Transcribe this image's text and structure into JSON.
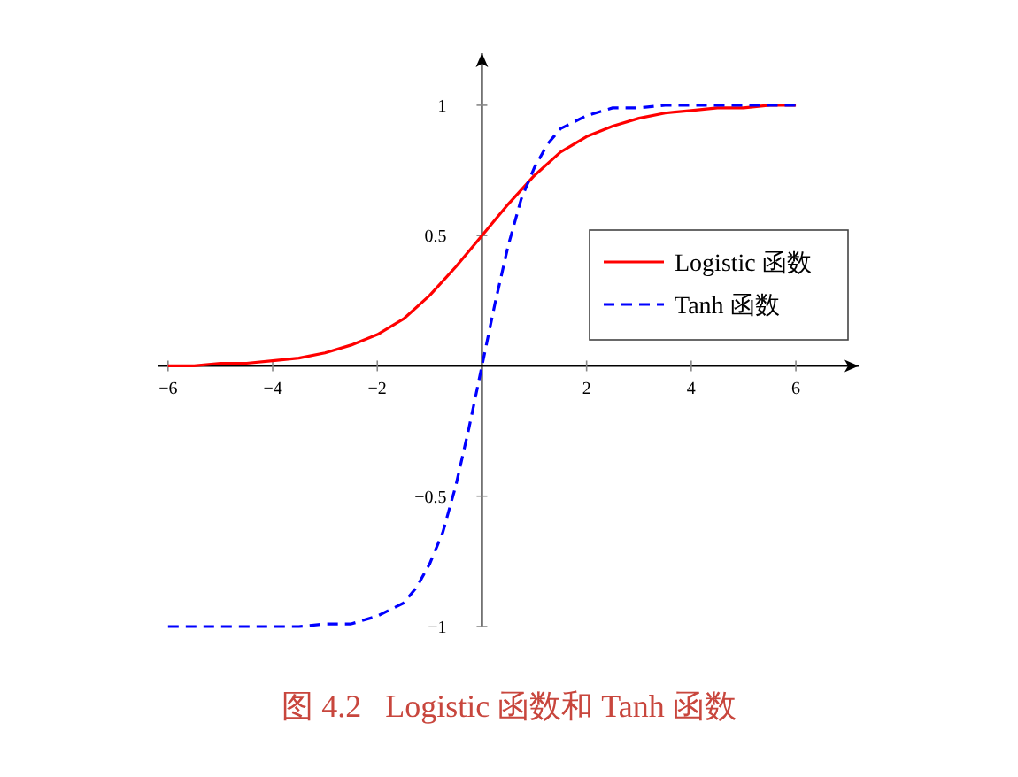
{
  "chart_data": {
    "type": "line",
    "annotations": [
      "图 4.2   Logistic 函数和 Tanh 函数"
    ],
    "xlim": [
      -6.2,
      7.2
    ],
    "ylim": [
      -1,
      1.2
    ],
    "xticks": [
      {
        "value": -6,
        "label": "−6"
      },
      {
        "value": -4,
        "label": "−4"
      },
      {
        "value": -2,
        "label": "−2"
      },
      2,
      4,
      6
    ],
    "yticks": [
      {
        "value": -1,
        "label": "−1"
      },
      {
        "value": -0.5,
        "label": "−0.5"
      },
      0.5,
      1
    ],
    "grid": false,
    "legend": "right",
    "marker": "none",
    "series": [
      {
        "name": "Logistic 函数",
        "color": "#ff0000",
        "line_style": "solid",
        "x": [
          -6,
          -5.5,
          -5,
          -4.5,
          -4,
          -3.5,
          -3,
          -2.5,
          -2,
          -1.5,
          -1,
          -0.5,
          0,
          0.5,
          1,
          1.5,
          2,
          2.5,
          3,
          3.5,
          4,
          4.5,
          5,
          5.5,
          6
        ],
        "values": [
          0.0,
          0.0,
          0.01,
          0.01,
          0.02,
          0.03,
          0.05,
          0.08,
          0.12,
          0.18,
          0.27,
          0.38,
          0.5,
          0.62,
          0.73,
          0.82,
          0.88,
          0.92,
          0.95,
          0.97,
          0.98,
          0.99,
          0.99,
          1.0,
          1.0
        ]
      },
      {
        "name": "Tanh 函数",
        "color": "#0000ff",
        "line_style": "dashed",
        "x": [
          -6,
          -5,
          -4,
          -3.5,
          -3,
          -2.5,
          -2,
          -1.5,
          -1.25,
          -1,
          -0.75,
          -0.5,
          -0.25,
          0,
          0.25,
          0.5,
          0.75,
          1,
          1.25,
          1.5,
          2,
          2.5,
          3,
          3.5,
          4,
          5,
          6
        ],
        "values": [
          -1,
          -1,
          -1,
          -1,
          -0.99,
          -0.99,
          -0.96,
          -0.91,
          -0.85,
          -0.76,
          -0.64,
          -0.46,
          -0.24,
          0,
          0.24,
          0.46,
          0.64,
          0.76,
          0.85,
          0.91,
          0.96,
          0.99,
          0.99,
          1,
          1,
          1,
          1
        ]
      }
    ]
  }
}
